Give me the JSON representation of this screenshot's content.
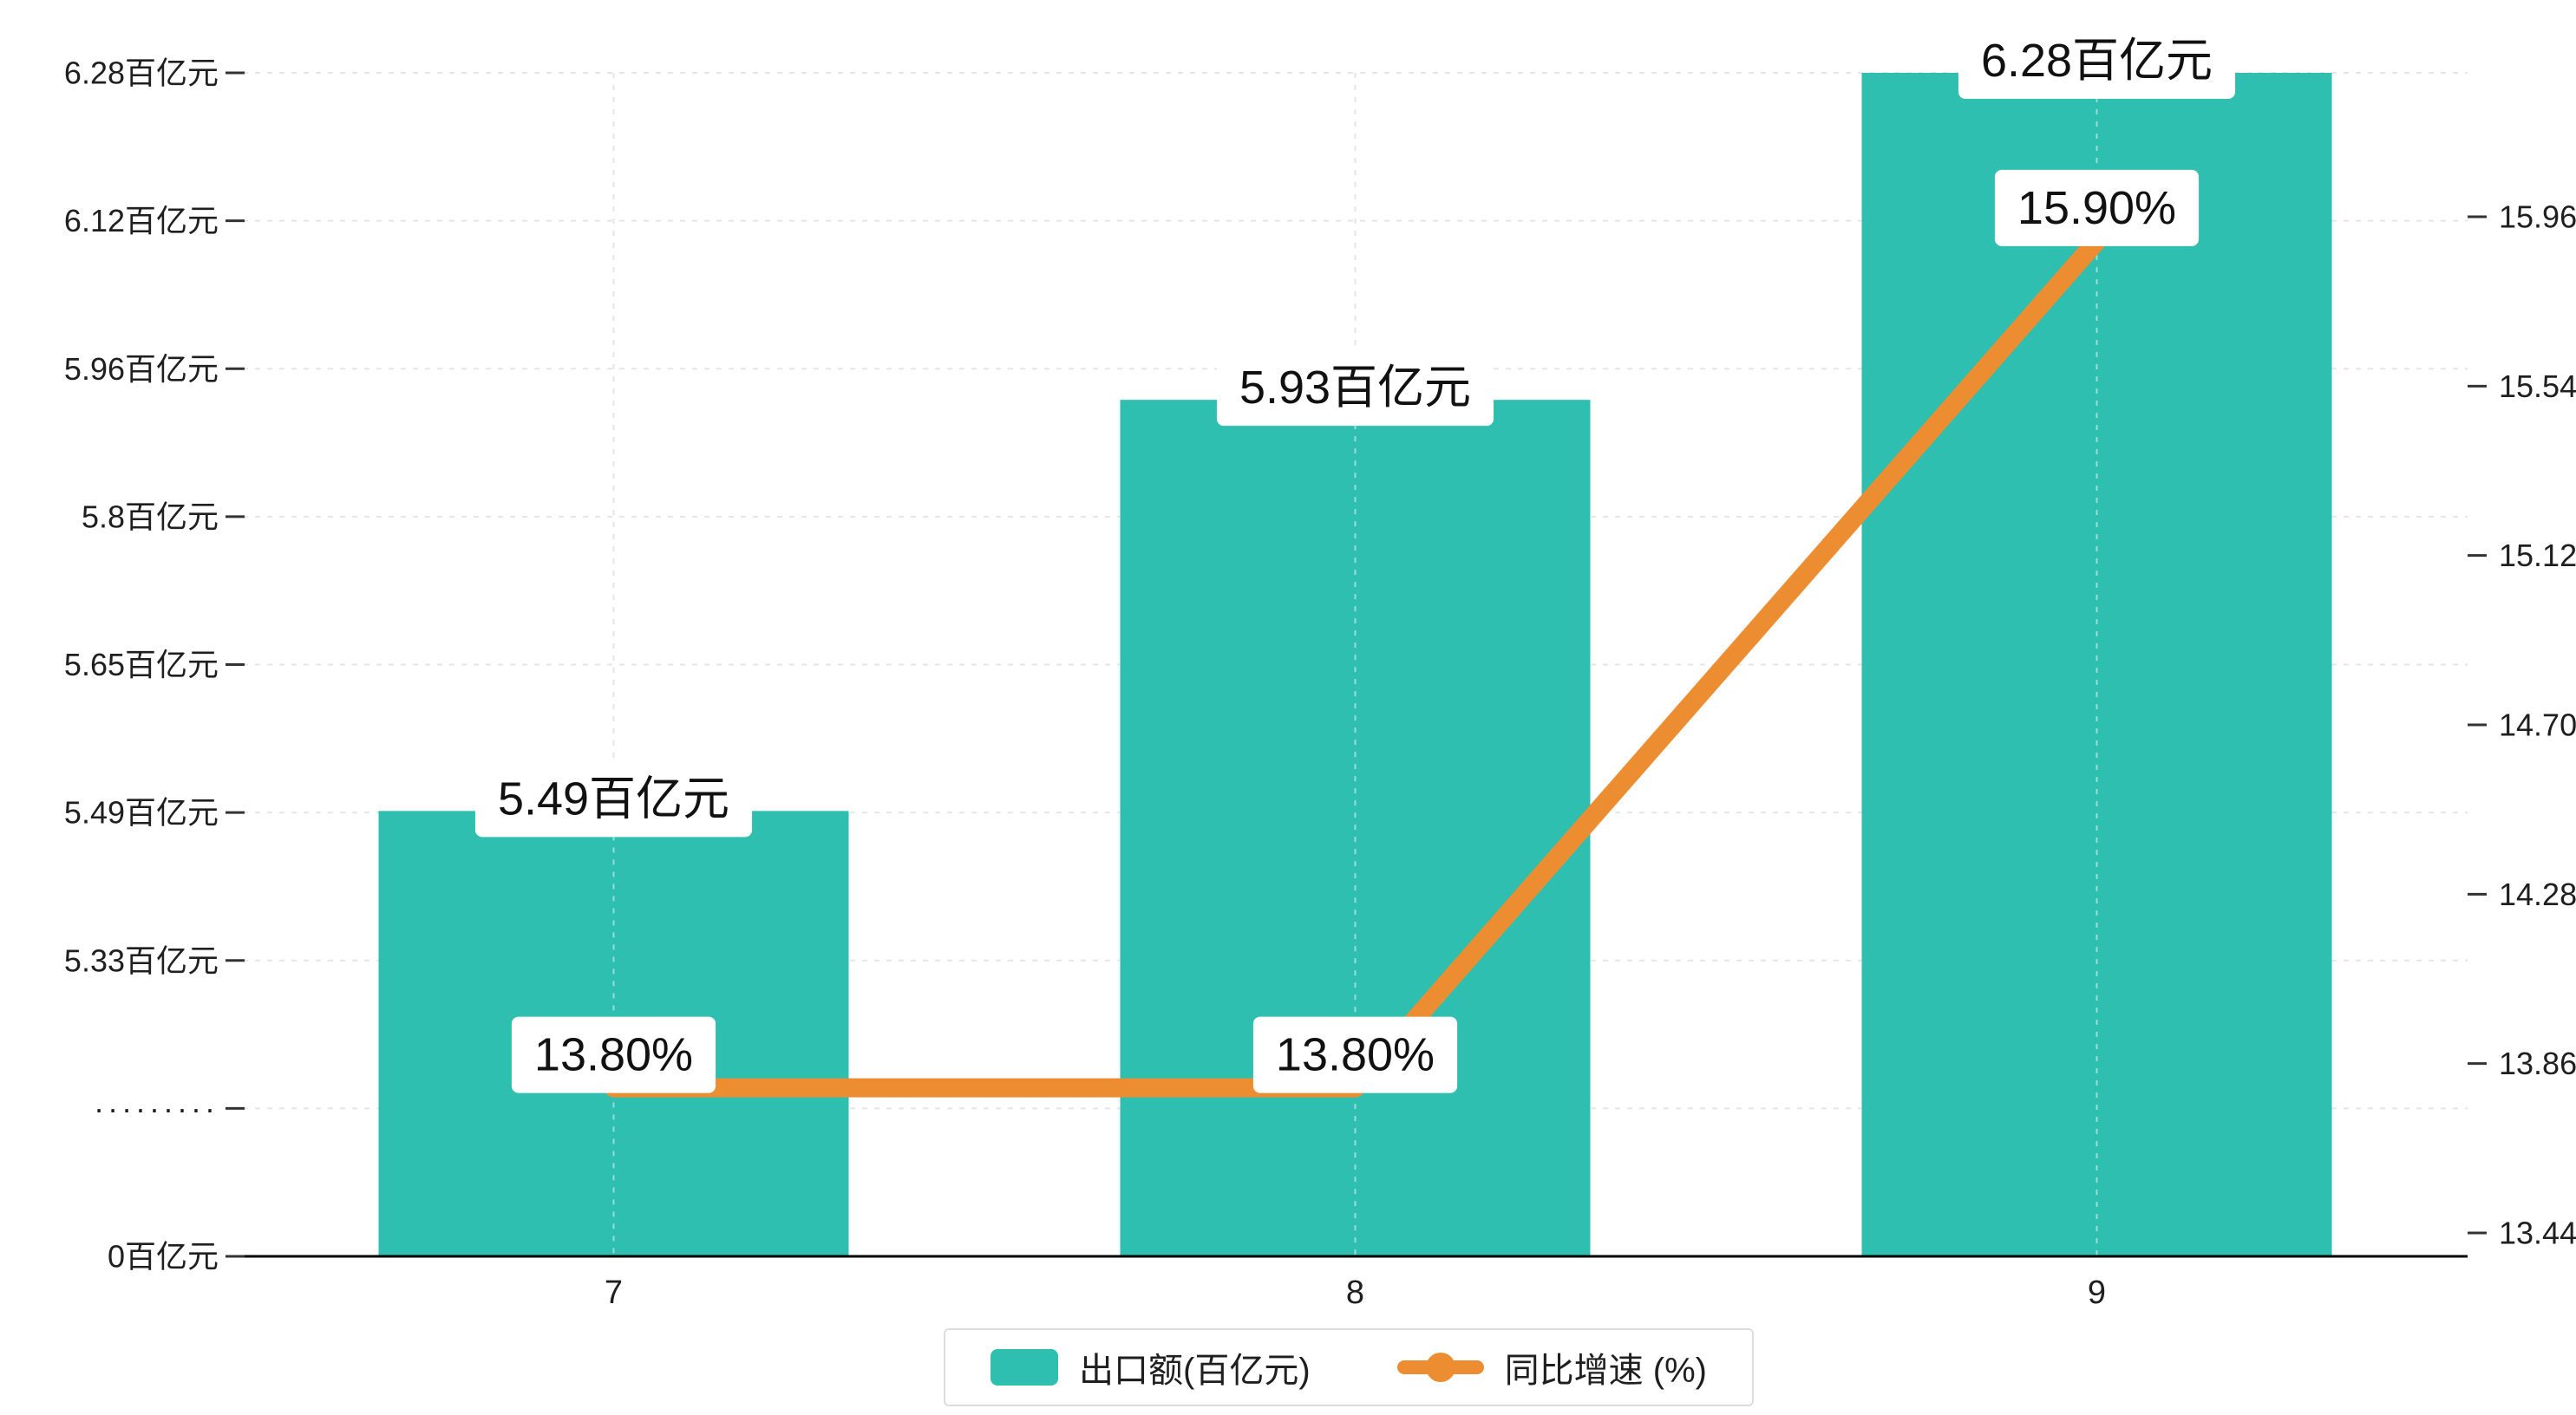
{
  "chart_data": {
    "type": "bar+line",
    "title": "",
    "categories": [
      "7",
      "8",
      "9"
    ],
    "series": [
      {
        "name": "出口额(百亿元)",
        "type": "bar",
        "axis": "left",
        "values": [
          5.49,
          5.93,
          6.28
        ],
        "labels": [
          "5.49百亿元",
          "5.93百亿元",
          "6.28百亿元"
        ],
        "color": "#2fbfb0"
      },
      {
        "name": "同比增速 (%)",
        "type": "line",
        "axis": "right",
        "values": [
          13.8,
          13.8,
          15.9
        ],
        "labels": [
          "13.80%",
          "13.80%",
          "15.90%"
        ],
        "color": "#ed8d31"
      }
    ],
    "left_axis": {
      "tick_labels": [
        "6.28百亿元",
        "6.12百亿元",
        "5.96百亿元",
        "5.8百亿元",
        "5.65百亿元",
        "5.49百亿元",
        "5.33百亿元",
        "·········",
        "0百亿元"
      ],
      "tick_values": [
        6.28,
        6.12,
        5.96,
        5.8,
        5.65,
        5.49,
        5.33,
        null,
        0
      ],
      "axis_break": true
    },
    "right_axis": {
      "tick_labels": [
        "15.96",
        "15.54",
        "15.12",
        "14.70",
        "14.28",
        "13.86",
        "13.44"
      ],
      "max": 15.96,
      "min": 13.44
    },
    "grid": true,
    "legend_position": "bottom-center"
  },
  "colors": {
    "bar": "#2fbfb0",
    "line": "#ed8d31",
    "grid": "#e6e6e6",
    "grid_on_bar": "rgba(255,255,255,0.5)",
    "axis": "#000000",
    "text": "#1f1f1f",
    "label_bg": "#ffffff"
  }
}
